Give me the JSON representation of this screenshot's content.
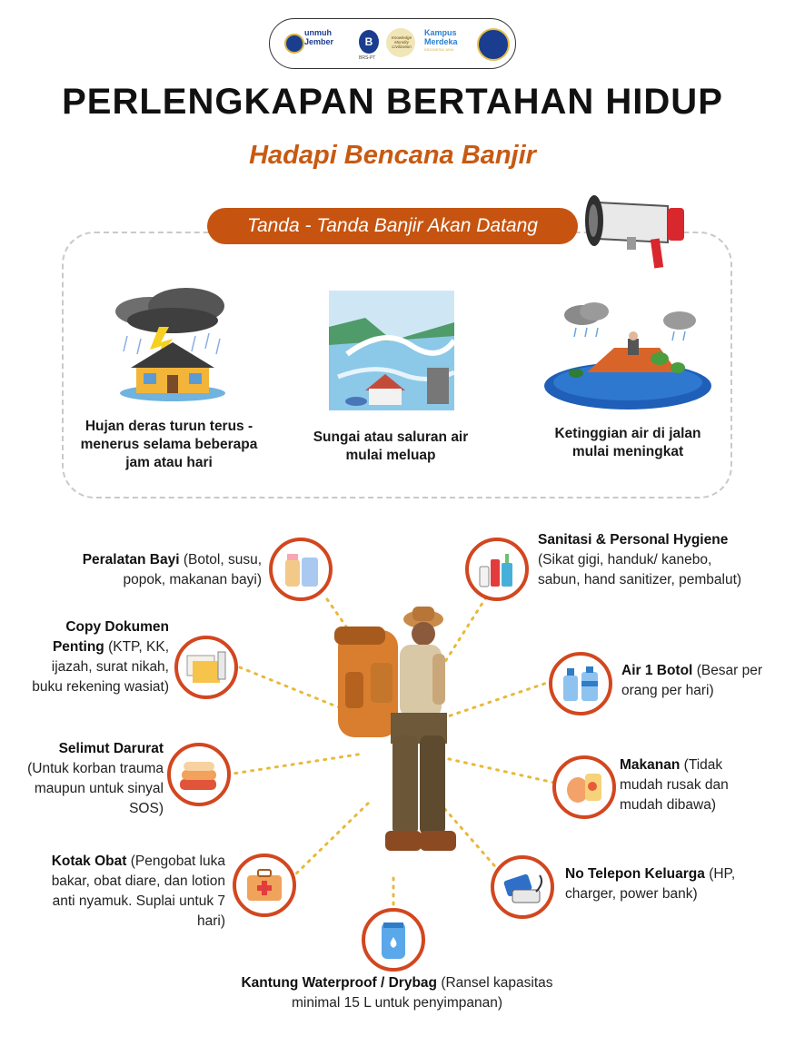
{
  "logos": {
    "umj_line1": "unmuh",
    "umj_line2": "Jember",
    "b_letter": "B",
    "b_sub": "BRS-PT",
    "kmc_text": "Knowledge Morality Civilization",
    "kampus_line1": "Kampus",
    "kampus_line2": "Merdeka",
    "kampus_sub": "INDONESIA JAYA"
  },
  "title": "PERLENGKAPAN BERTAHAN HIDUP",
  "subtitle": "Hadapi Bencana Banjir",
  "signs": {
    "header": "Tanda - Tanda Banjir Akan Datang",
    "items": [
      {
        "text": "Hujan deras turun terus - menerus selama beberapa jam atau hari",
        "icon": "storm-house-icon"
      },
      {
        "text": "Sungai atau saluran air mulai meluap",
        "icon": "overflowing-river-icon"
      },
      {
        "text": "Ketinggian air di jalan mulai meningkat",
        "icon": "flooded-house-icon"
      }
    ]
  },
  "supplies": {
    "baby": {
      "name": "Peralatan Bayi",
      "desc": "(Botol, susu, popok, makanan bayi)",
      "icon": "baby-bottle-icon"
    },
    "docs": {
      "name": "Copy Dokumen Penting",
      "desc": "(KTP, KK, ijazah, surat nikah, buku rekening wasiat)",
      "icon": "documents-icon"
    },
    "blanket": {
      "name": "Selimut Darurat",
      "desc": "(Untuk korban trauma maupun untuk sinyal SOS)",
      "icon": "blanket-icon"
    },
    "firstaid": {
      "name": "Kotak Obat",
      "desc": "(Pengobat luka bakar, obat diare, dan lotion anti nyamuk. Suplai untuk 7 hari)",
      "icon": "first-aid-kit-icon"
    },
    "drybag": {
      "name": "Kantung Waterproof / Drybag",
      "desc": "(Ransel kapasitas minimal 15 L untuk penyimpanan)",
      "icon": "drybag-icon"
    },
    "sanitation": {
      "name": "Sanitasi & Personal Hygiene",
      "desc": "(Sikat gigi, handuk/ kanebo, sabun, hand sanitizer, pembalut)",
      "icon": "toiletries-icon"
    },
    "water": {
      "name": "Air 1 Botol",
      "desc": "(Besar per orang per hari)",
      "icon": "water-bottles-icon"
    },
    "food": {
      "name": "Makanan",
      "desc": "(Tidak mudah rusak dan mudah dibawa)",
      "icon": "food-icon"
    },
    "phone": {
      "name": "No Telepon Keluarga",
      "desc": "(HP, charger, power bank)",
      "icon": "phone-charger-icon"
    }
  },
  "colors": {
    "accent": "#d2471f",
    "brand_orange": "#c65410",
    "connector": "#e8b93a"
  }
}
